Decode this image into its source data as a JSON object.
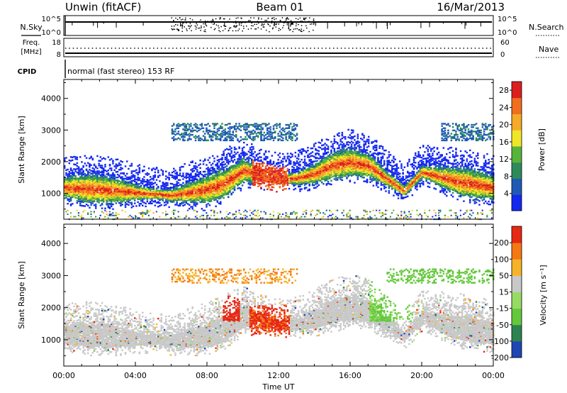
{
  "header": {
    "station": "Unwin (fitACF)",
    "beam": "Beam 01",
    "date": "16/Mar/2013"
  },
  "aux_panels": {
    "nsky_label": "N.Sky",
    "nsky_ticks": [
      "10^5",
      "10^0"
    ],
    "nsearch_label": "N.Search",
    "nsearch_ticks": [
      "10^5",
      "10^0"
    ],
    "freq_label": "Freq.",
    "freq_unit": "[MHz]",
    "freq_ticks": [
      "18",
      "8"
    ],
    "nave_label": "Nave",
    "nave_ticks": [
      "60",
      "0"
    ],
    "cpid_label": "CPID",
    "cpid_text": "normal (fast stereo) 153 RF"
  },
  "xaxis": {
    "label": "Time UT",
    "ticks": [
      "00:00",
      "04:00",
      "08:00",
      "12:00",
      "16:00",
      "20:00",
      "00:00"
    ]
  },
  "chart_data": [
    {
      "type": "heatmap",
      "name": "power",
      "ylabel": "Slant Range [km]",
      "x_range_hours": [
        0,
        24
      ],
      "ylim": [
        180,
        4600
      ],
      "yticks": [
        1000,
        2000,
        3000,
        4000
      ],
      "xticks_hours": [
        0,
        4,
        8,
        12,
        16,
        20,
        24
      ],
      "colorbar": {
        "label": "Power [dB]",
        "tick_labels": [
          "28",
          "24",
          "20",
          "16",
          "12",
          "8",
          "4"
        ],
        "tick_values": [
          28,
          24,
          20,
          16,
          12,
          8,
          4
        ],
        "range": [
          0,
          30
        ],
        "colors": [
          "#1428f0",
          "#1e5ab4",
          "#2e8a5a",
          "#56b43a",
          "#f0e628",
          "#f5aa28",
          "#f06e1e",
          "#dc1e1e"
        ]
      },
      "scatter_band": [
        {
          "x": 0,
          "y": 1200
        },
        {
          "x": 2,
          "y": 1150
        },
        {
          "x": 4,
          "y": 1050
        },
        {
          "x": 6,
          "y": 960
        },
        {
          "x": 7,
          "y": 1050
        },
        {
          "x": 8,
          "y": 1150
        },
        {
          "x": 9,
          "y": 1350
        },
        {
          "x": 10,
          "y": 1750
        },
        {
          "x": 11,
          "y": 1600
        },
        {
          "x": 12,
          "y": 1450
        },
        {
          "x": 13,
          "y": 1500
        },
        {
          "x": 14,
          "y": 1650
        },
        {
          "x": 15,
          "y": 1900
        },
        {
          "x": 16,
          "y": 2000
        },
        {
          "x": 17,
          "y": 1900
        },
        {
          "x": 18,
          "y": 1500
        },
        {
          "x": 19,
          "y": 1100
        },
        {
          "x": 20,
          "y": 1700
        },
        {
          "x": 21,
          "y": 1550
        },
        {
          "x": 22,
          "y": 1400
        },
        {
          "x": 24,
          "y": 1200
        }
      ]
    },
    {
      "type": "heatmap",
      "name": "velocity",
      "ylabel": "Slant Range [km]",
      "x_range_hours": [
        0,
        24
      ],
      "ylim": [
        180,
        4600
      ],
      "yticks": [
        1000,
        2000,
        3000,
        4000
      ],
      "xticks_hours": [
        0,
        4,
        8,
        12,
        16,
        20,
        24
      ],
      "colorbar": {
        "label": "Velocity [m s⁻¹]",
        "tick_labels": [
          "200",
          "100",
          "50",
          "15",
          "-15",
          "-50",
          "-100",
          "-200"
        ],
        "tick_values": [
          200,
          100,
          50,
          15,
          -15,
          -50,
          -100,
          -200
        ],
        "colors": [
          "#1e46b4",
          "#2d8250",
          "#64c83c",
          "#96dc64",
          "#c8c8c8",
          "#f5b428",
          "#f57814",
          "#e62814"
        ]
      }
    }
  ],
  "colors": {
    "ground_scatter": "#c8c8c8",
    "frame": "#000000"
  }
}
